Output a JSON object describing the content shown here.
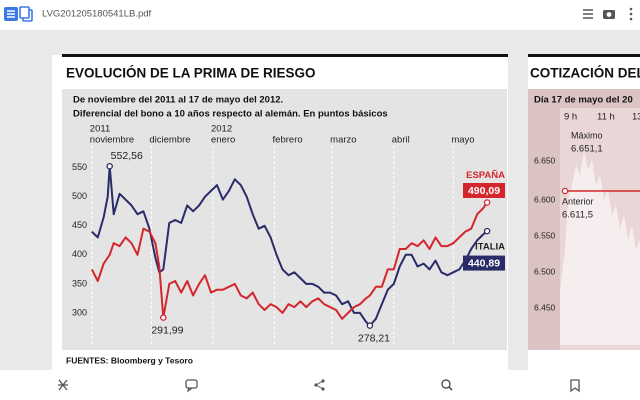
{
  "toolbar": {
    "filename": "LVG201205180541LB.pdf"
  },
  "chart_data": [
    {
      "type": "line",
      "title": "EVOLUCIÓN DE LA PRIMA DE RIESGO",
      "subtitle": [
        "De noviembre del 2011 al 17 de mayo del 2012.",
        "Diferencial del bono a 10 años respecto al alemán. En puntos básicos"
      ],
      "year_labels": [
        "2011",
        "2012"
      ],
      "x": [
        0,
        3,
        6,
        8,
        9,
        11,
        14,
        17,
        20,
        23,
        26,
        29,
        32,
        34,
        36,
        39,
        42,
        45,
        48,
        51,
        54,
        57,
        60,
        63,
        66,
        69,
        72,
        75,
        78,
        81,
        84,
        87,
        90,
        93,
        96,
        99,
        102,
        105,
        108,
        111,
        114,
        117,
        120,
        123,
        126,
        129,
        132,
        135,
        138,
        140,
        143,
        146,
        149,
        152,
        155,
        158,
        161,
        164,
        167,
        170,
        173,
        176,
        179,
        182,
        185,
        188,
        191,
        194,
        197,
        199
      ],
      "xlim": [
        -15,
        208
      ],
      "xticks": [
        {
          "value": 0,
          "label": "noviembre"
        },
        {
          "value": 30,
          "label": "diciembre"
        },
        {
          "value": 61,
          "label": "enero"
        },
        {
          "value": 92,
          "label": "febrero"
        },
        {
          "value": 121,
          "label": "marzo"
        },
        {
          "value": 152,
          "label": "abril"
        },
        {
          "value": 182,
          "label": "mayo"
        }
      ],
      "ylim": [
        250,
        620
      ],
      "yticks": [
        300,
        350,
        400,
        450,
        500,
        550
      ],
      "grid": true,
      "series": [
        {
          "name": "ITALIA",
          "color": "#2a2c68",
          "values": [
            440,
            430,
            465,
            500,
            552.56,
            470,
            505,
            495,
            485,
            470,
            475,
            445,
            395,
            370,
            375,
            455,
            460,
            455,
            485,
            475,
            485,
            500,
            510,
            520,
            495,
            510,
            530,
            520,
            500,
            470,
            445,
            450,
            430,
            400,
            375,
            365,
            370,
            360,
            350,
            350,
            345,
            335,
            335,
            330,
            315,
            320,
            300,
            300,
            285,
            278.21,
            290,
            315,
            340,
            350,
            380,
            400,
            400,
            380,
            385,
            375,
            390,
            370,
            365,
            370,
            375,
            390,
            410,
            425,
            435,
            440.89
          ],
          "value_labels": [
            null,
            null,
            null,
            null,
            "552,56",
            null,
            null,
            null,
            null,
            null,
            null,
            null,
            null,
            null,
            null,
            null,
            null,
            null,
            null,
            null,
            null,
            null,
            null,
            null,
            null,
            null,
            null,
            null,
            null,
            null,
            null,
            null,
            null,
            null,
            null,
            null,
            null,
            null,
            null,
            null,
            null,
            null,
            null,
            null,
            null,
            null,
            null,
            null,
            null,
            "278,21",
            null,
            null,
            null,
            null,
            null,
            null,
            null,
            null,
            null,
            null,
            null,
            null,
            null,
            null,
            null,
            null,
            null,
            null,
            null,
            "440,89"
          ]
        },
        {
          "name": "ESPAÑA",
          "color": "#d4262c",
          "values": [
            375,
            355,
            385,
            395,
            400,
            420,
            415,
            430,
            420,
            400,
            445,
            440,
            420,
            380,
            291.99,
            350,
            355,
            335,
            355,
            330,
            350,
            365,
            335,
            340,
            340,
            345,
            350,
            330,
            325,
            335,
            315,
            305,
            315,
            310,
            300,
            315,
            310,
            320,
            310,
            320,
            325,
            315,
            310,
            305,
            290,
            300,
            310,
            315,
            325,
            330,
            345,
            345,
            375,
            375,
            410,
            410,
            420,
            415,
            425,
            410,
            430,
            415,
            415,
            420,
            430,
            440,
            445,
            470,
            480,
            490.09
          ],
          "value_labels": [
            null,
            null,
            null,
            null,
            null,
            null,
            null,
            null,
            null,
            null,
            null,
            null,
            null,
            null,
            "291,99",
            null,
            null,
            null,
            null,
            null,
            null,
            null,
            null,
            null,
            null,
            null,
            null,
            null,
            null,
            null,
            null,
            null,
            null,
            null,
            null,
            null,
            null,
            null,
            null,
            null,
            null,
            null,
            null,
            null,
            null,
            null,
            null,
            null,
            null,
            null,
            null,
            null,
            null,
            null,
            null,
            null,
            null,
            null,
            null,
            null,
            null,
            null,
            null,
            null,
            null,
            null,
            null,
            null,
            null,
            "490,09"
          ]
        }
      ],
      "source": "FUENTES: Bloomberg y Tesoro"
    }
  ],
  "side_panel": {
    "title": "COTIZACIÓN DEL",
    "subtitle": "Día 17 de mayo del 20",
    "times": [
      "9 h",
      "11 h",
      "13"
    ],
    "levels": [
      "6.650",
      "6.600",
      "6.550",
      "6.500",
      "6.450"
    ],
    "max_label": "Máximo",
    "max_value": "6.651,1",
    "prev_label": "Anterior",
    "prev_value": "6.611,5"
  }
}
